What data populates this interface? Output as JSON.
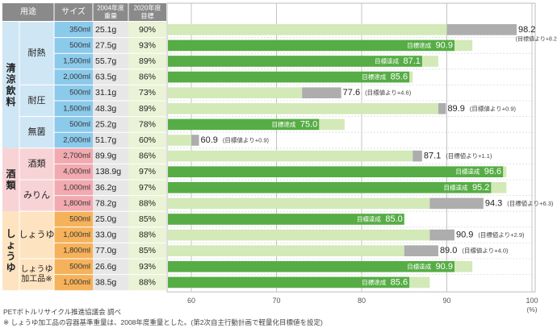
{
  "colors": {
    "header_bg": "#8a8a8a",
    "grp_drink_cat": "#cfe6f4",
    "grp_drink_size": "#8ccaec",
    "grp_sake_cat": "#f8d3d6",
    "grp_sake_size": "#f2a9b0",
    "grp_soy_cat": "#fde3c0",
    "grp_soy_size": "#f6b25a",
    "data_cell": "#e7e7e7",
    "target_cell": "#eaf3d6",
    "bar_target": "#d3e9b8",
    "bar_achieved": "#56ad45",
    "bar_overrun": "#adadad"
  },
  "headers": {
    "use": "用途",
    "size": "サイズ",
    "weight_2004": [
      "2004年度",
      "重量"
    ],
    "target_2020": [
      "2020年度",
      "目標"
    ]
  },
  "groups": [
    {
      "name": "清涼飲料",
      "color_key": "drink",
      "subgroups": [
        {
          "name": "耐熱",
          "rows": [
            0,
            1,
            2,
            3
          ]
        },
        {
          "name": "耐圧",
          "rows": [
            4,
            5
          ]
        },
        {
          "name": "無菌",
          "rows": [
            6,
            7
          ]
        }
      ]
    },
    {
      "name": "酒類",
      "color_key": "sake",
      "subgroups": [
        {
          "name": "酒類",
          "rows": [
            8,
            9
          ]
        },
        {
          "name": "みりん",
          "rows": [
            10,
            11
          ]
        }
      ]
    },
    {
      "name": "しょうゆ",
      "color_key": "soy",
      "subgroups": [
        {
          "name": "しょうゆ",
          "rows": [
            12,
            13,
            14
          ]
        },
        {
          "name": "しょうゆ加工品※",
          "rows": [
            15,
            16
          ]
        }
      ]
    }
  ],
  "chart_data": {
    "type": "bar",
    "orientation": "horizontal",
    "xlim": [
      57,
      100
    ],
    "x_ticks": [
      60,
      70,
      80,
      90,
      100
    ],
    "x_unit": "(%)",
    "grid": true,
    "achieved_label": "目標達成",
    "note_prefix": "(目標値より",
    "note_suffix": ")",
    "rows": [
      {
        "size": "350ml",
        "weight_2004": "25.1g",
        "target_label": "90%",
        "target": 90,
        "actual": 98.2,
        "label": "98.2",
        "diff": "+8.2"
      },
      {
        "size": "500ml",
        "weight_2004": "27.5g",
        "target_label": "93%",
        "target": 93,
        "actual": 90.9,
        "label": "90.9",
        "diff": ""
      },
      {
        "size": "1,500ml",
        "weight_2004": "55.7g",
        "target_label": "89%",
        "target": 89,
        "actual": 87.1,
        "label": "87.1",
        "diff": ""
      },
      {
        "size": "2,000ml",
        "weight_2004": "63.5g",
        "target_label": "86%",
        "target": 86,
        "actual": 85.6,
        "label": "85.6",
        "diff": ""
      },
      {
        "size": "500ml",
        "weight_2004": "31.1g",
        "target_label": "73%",
        "target": 73,
        "actual": 77.6,
        "label": "77.6",
        "diff": "+4.6"
      },
      {
        "size": "1,500ml",
        "weight_2004": "48.3g",
        "target_label": "89%",
        "target": 89,
        "actual": 89.9,
        "label": "89.9",
        "diff": "+0.9"
      },
      {
        "size": "500ml",
        "weight_2004": "25.2g",
        "target_label": "78%",
        "target": 78,
        "actual": 75.0,
        "label": "75.0",
        "diff": ""
      },
      {
        "size": "2,000ml",
        "weight_2004": "51.7g",
        "target_label": "60%",
        "target": 60,
        "actual": 60.9,
        "label": "60.9",
        "diff": "+0.9"
      },
      {
        "size": "2,700ml",
        "weight_2004": "89.9g",
        "target_label": "86%",
        "target": 86,
        "actual": 87.1,
        "label": "87.1",
        "diff": "+1.1"
      },
      {
        "size": "4,000ml",
        "weight_2004": "138.9g",
        "target_label": "97%",
        "target": 97,
        "actual": 96.6,
        "label": "96.6",
        "diff": ""
      },
      {
        "size": "1,000ml",
        "weight_2004": "36.2g",
        "target_label": "97%",
        "target": 97,
        "actual": 95.2,
        "label": "95.2",
        "diff": ""
      },
      {
        "size": "1,800ml",
        "weight_2004": "78.2g",
        "target_label": "88%",
        "target": 88,
        "actual": 94.3,
        "label": "94.3",
        "diff": "+6.3"
      },
      {
        "size": "500ml",
        "weight_2004": "25.0g",
        "target_label": "85%",
        "target": 85,
        "actual": 85.0,
        "label": "85.0",
        "diff": ""
      },
      {
        "size": "1,000ml",
        "weight_2004": "33.0g",
        "target_label": "88%",
        "target": 88,
        "actual": 90.9,
        "label": "90.9",
        "diff": "+2.9"
      },
      {
        "size": "1,800ml",
        "weight_2004": "77.0g",
        "target_label": "85%",
        "target": 85,
        "actual": 89.0,
        "label": "89.0",
        "diff": "+4.0"
      },
      {
        "size": "500ml",
        "weight_2004": "26.6g",
        "target_label": "93%",
        "target": 93,
        "actual": 90.9,
        "label": "90.9",
        "diff": ""
      },
      {
        "size": "1,000ml",
        "weight_2004": "38.5g",
        "target_label": "88%",
        "target": 88,
        "actual": 85.6,
        "label": "85.6",
        "diff": ""
      }
    ]
  },
  "footnotes": {
    "source": "PETボトルリサイクル推進協議会 調べ",
    "note": "※ しょうゆ加工品の容器基準重量は、2008年度重量とした。(第2次自主行動計画で軽量化目標値を設定)"
  }
}
